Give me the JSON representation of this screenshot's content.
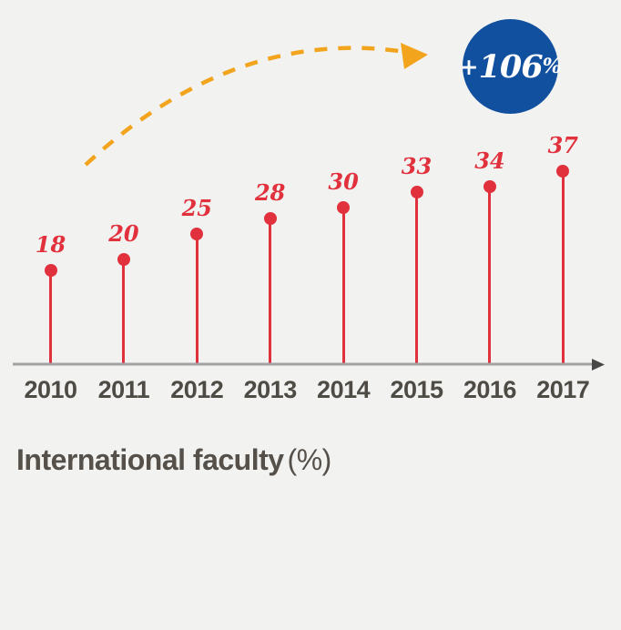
{
  "chart_data": {
    "type": "lollipop",
    "title": "International faculty (%)",
    "title_bold": "International faculty",
    "title_suffix": "(%)",
    "categories": [
      "2010",
      "2011",
      "2012",
      "2013",
      "2014",
      "2015",
      "2016",
      "2017"
    ],
    "values": [
      18,
      20,
      25,
      28,
      30,
      33,
      34,
      37
    ],
    "xlabel": "",
    "ylabel": "International faculty (%)",
    "ylim": [
      0,
      40
    ],
    "grid": false,
    "legend": false,
    "annotation": {
      "badge_plus": "+",
      "badge_number": "106",
      "badge_percent": "%"
    },
    "colors": {
      "point": "#e1313d",
      "value_labels": "#e1313d",
      "axis": "#a3a3a3",
      "axis_arrow": "#484848",
      "year_labels": "#4e4b45",
      "title": "#55514a",
      "background": "#f2f2f1",
      "badge_background": "#10509f",
      "badge_text": "#ffffff",
      "trend_arrow": "#f3a41d"
    }
  }
}
